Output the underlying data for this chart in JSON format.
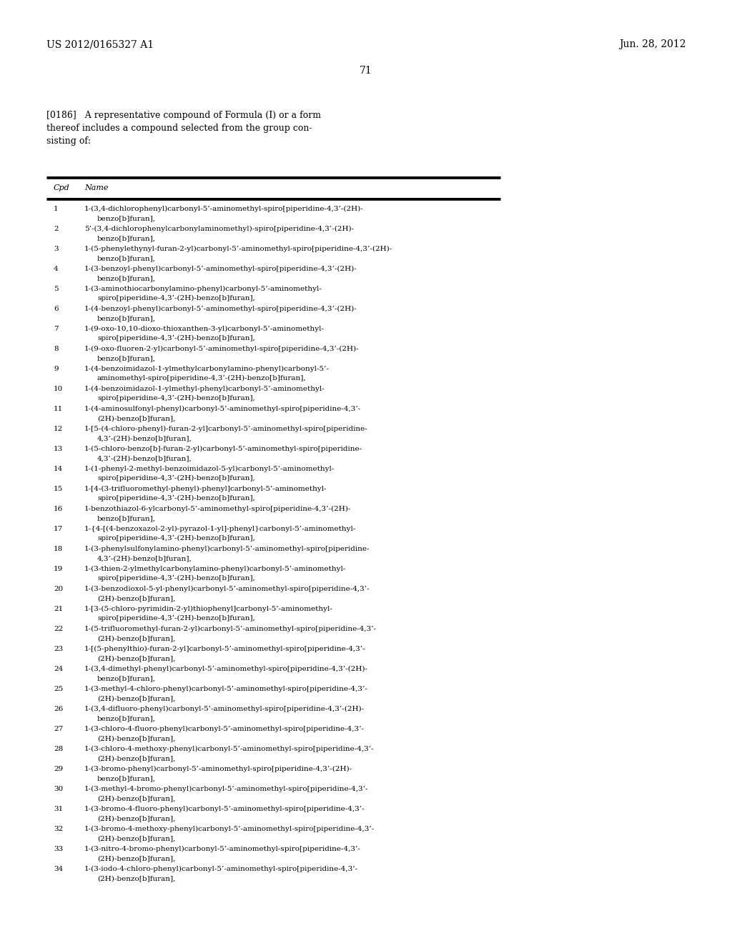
{
  "header_left": "US 2012/0165327 A1",
  "header_right": "Jun. 28, 2012",
  "page_number": "71",
  "paragraph_lines": [
    "[0186]   A representative compound of Formula (I) or a form",
    "thereof includes a compound selected from the group con-",
    "sisting of:"
  ],
  "table_header_col1": "Cpd",
  "table_header_col2": "Name",
  "compounds": [
    [
      1,
      "1-(3,4-dichlorophenyl)carbonyl-5’-aminomethyl-spiro[piperidine-4,3’-(2H)-",
      "benzo[b]furan],"
    ],
    [
      2,
      "5’-(3,4-dichlorophenylcarbonylaminomethyl)-spiro[piperidine-4,3’-(2H)-",
      "benzo[b]furan],"
    ],
    [
      3,
      "1-(5-phenylethynyl-furan-2-yl)carbonyl-5’-aminomethyl-spiro[piperidine-4,3’-(2H)-",
      "benzo[b]furan],"
    ],
    [
      4,
      "1-(3-benzoyl-phenyl)carbonyl-5’-aminomethyl-spiro[piperidine-4,3’-(2H)-",
      "benzo[b]furan],"
    ],
    [
      5,
      "1-(3-aminothiocarbonylamino-phenyl)carbonyl-5’-aminomethyl-",
      "spiro[piperidine-4,3’-(2H)-benzo[b]furan],"
    ],
    [
      6,
      "1-(4-benzoyl-phenyl)carbonyl-5’-aminomethyl-spiro[piperidine-4,3’-(2H)-",
      "benzo[b]furan],"
    ],
    [
      7,
      "1-(9-oxo-10,10-dioxo-thioxanthen-3-yl)carbonyl-5’-aminomethyl-",
      "spiro[piperidine-4,3’-(2H)-benzo[b]furan],"
    ],
    [
      8,
      "1-(9-oxo-fluoren-2-yl)carbonyl-5’-aminomethyl-spiro[piperidine-4,3’-(2H)-",
      "benzo[b]furan],"
    ],
    [
      9,
      "1-(4-benzoimidazol-1-ylmethylcarbonylamino-phenyl)carbonyl-5’-",
      "aminomethyl-spiro[piperidine-4,3’-(2H)-benzo[b]furan],"
    ],
    [
      10,
      "1-(4-benzoimidazol-1-ylmethyl-phenyl)carbonyl-5’-aminomethyl-",
      "spiro[piperidine-4,3’-(2H)-benzo[b]furan],"
    ],
    [
      11,
      "1-(4-aminosulfonyl-phenyl)carbonyl-5’-aminomethyl-spiro[piperidine-4,3’-",
      "(2H)-benzo[b]furan],"
    ],
    [
      12,
      "1-[5-(4-chloro-phenyl)-furan-2-yl]carbonyl-5’-aminomethyl-spiro[piperidine-",
      "4,3’-(2H)-benzo[b]furan],"
    ],
    [
      13,
      "1-(5-chloro-benzo[b]-furan-2-yl)carbonyl-5’-aminomethyl-spiro[piperidine-",
      "4,3’-(2H)-benzo[b]furan],"
    ],
    [
      14,
      "1-(1-phenyl-2-methyl-benzoimidazol-5-yl)carbonyl-5’-aminomethyl-",
      "spiro[piperidine-4,3’-(2H)-benzo[b]furan],"
    ],
    [
      15,
      "1-[4-(3-trifluoromethyl-phenyl)-phenyl]carbonyl-5’-aminomethyl-",
      "spiro[piperidine-4,3’-(2H)-benzo[b]furan],"
    ],
    [
      16,
      "1-benzothiazol-6-ylcarbonyl-5’-aminomethyl-spiro[piperidine-4,3’-(2H)-",
      "benzo[b]furan],"
    ],
    [
      17,
      "1-{4-[(4-benzoxazol-2-yl)-pyrazol-1-yl]-phenyl}carbonyl-5’-aminomethyl-",
      "spiro[piperidine-4,3’-(2H)-benzo[b]furan],"
    ],
    [
      18,
      "1-(3-phenylsulfonylamino-phenyl)carbonyl-5’-aminomethyl-spiro[piperidine-",
      "4,3’-(2H)-benzo[b]furan],"
    ],
    [
      19,
      "1-(3-thien-2-ylmethylcarbonylamino-phenyl)carbonyl-5’-aminomethyl-",
      "spiro[piperidine-4,3’-(2H)-benzo[b]furan],"
    ],
    [
      20,
      "1-(3-benzodioxol-5-yl-phenyl)carbonyl-5’-aminomethyl-spiro[piperidine-4,3’-",
      "(2H)-benzo[b]furan],"
    ],
    [
      21,
      "1-[3-(5-chloro-pyrimidin-2-yl)thiophenyl]carbonyl-5’-aminomethyl-",
      "spiro[piperidine-4,3’-(2H)-benzo[b]furan],"
    ],
    [
      22,
      "1-(5-trifluoromethyl-furan-2-yl)carbonyl-5’-aminomethyl-spiro[piperidine-4,3’-",
      "(2H)-benzo[b]furan],"
    ],
    [
      23,
      "1-[(5-phenylthio)-furan-2-yl]carbonyl-5’-aminomethyl-spiro[piperidine-4,3’-",
      "(2H)-benzo[b]furan],"
    ],
    [
      24,
      "1-(3,4-dimethyl-phenyl)carbonyl-5’-aminomethyl-spiro[piperidine-4,3’-(2H)-",
      "benzo[b]furan],"
    ],
    [
      25,
      "1-(3-methyl-4-chloro-phenyl)carbonyl-5’-aminomethyl-spiro[piperidine-4,3’-",
      "(2H)-benzo[b]furan],"
    ],
    [
      26,
      "1-(3,4-difluoro-phenyl)carbonyl-5’-aminomethyl-spiro[piperidine-4,3’-(2H)-",
      "benzo[b]furan],"
    ],
    [
      27,
      "1-(3-chloro-4-fluoro-phenyl)carbonyl-5’-aminomethyl-spiro[piperidine-4,3’-",
      "(2H)-benzo[b]furan],"
    ],
    [
      28,
      "1-(3-chloro-4-methoxy-phenyl)carbonyl-5’-aminomethyl-spiro[piperidine-4,3’-",
      "(2H)-benzo[b]furan],"
    ],
    [
      29,
      "1-(3-bromo-phenyl)carbonyl-5’-aminomethyl-spiro[piperidine-4,3’-(2H)-",
      "benzo[b]furan],"
    ],
    [
      30,
      "1-(3-methyl-4-bromo-phenyl)carbonyl-5’-aminomethyl-spiro[piperidine-4,3’-",
      "(2H)-benzo[b]furan],"
    ],
    [
      31,
      "1-(3-bromo-4-fluoro-phenyl)carbonyl-5’-aminomethyl-spiro[piperidine-4,3’-",
      "(2H)-benzo[b]furan],"
    ],
    [
      32,
      "1-(3-bromo-4-methoxy-phenyl)carbonyl-5’-aminomethyl-spiro[piperidine-4,3’-",
      "(2H)-benzo[b]furan],"
    ],
    [
      33,
      "1-(3-nitro-4-bromo-phenyl)carbonyl-5’-aminomethyl-spiro[piperidine-4,3’-",
      "(2H)-benzo[b]furan],"
    ],
    [
      34,
      "1-(3-iodo-4-chloro-phenyl)carbonyl-5’-aminomethyl-spiro[piperidine-4,3’-",
      "(2H)-benzo[b]furan],"
    ]
  ],
  "bg_color": "#ffffff",
  "text_color": "#000000",
  "line_color": "#000000",
  "header_fontsize": 10,
  "pagenum_fontsize": 10,
  "para_fontsize": 9,
  "table_fontsize": 7.5
}
